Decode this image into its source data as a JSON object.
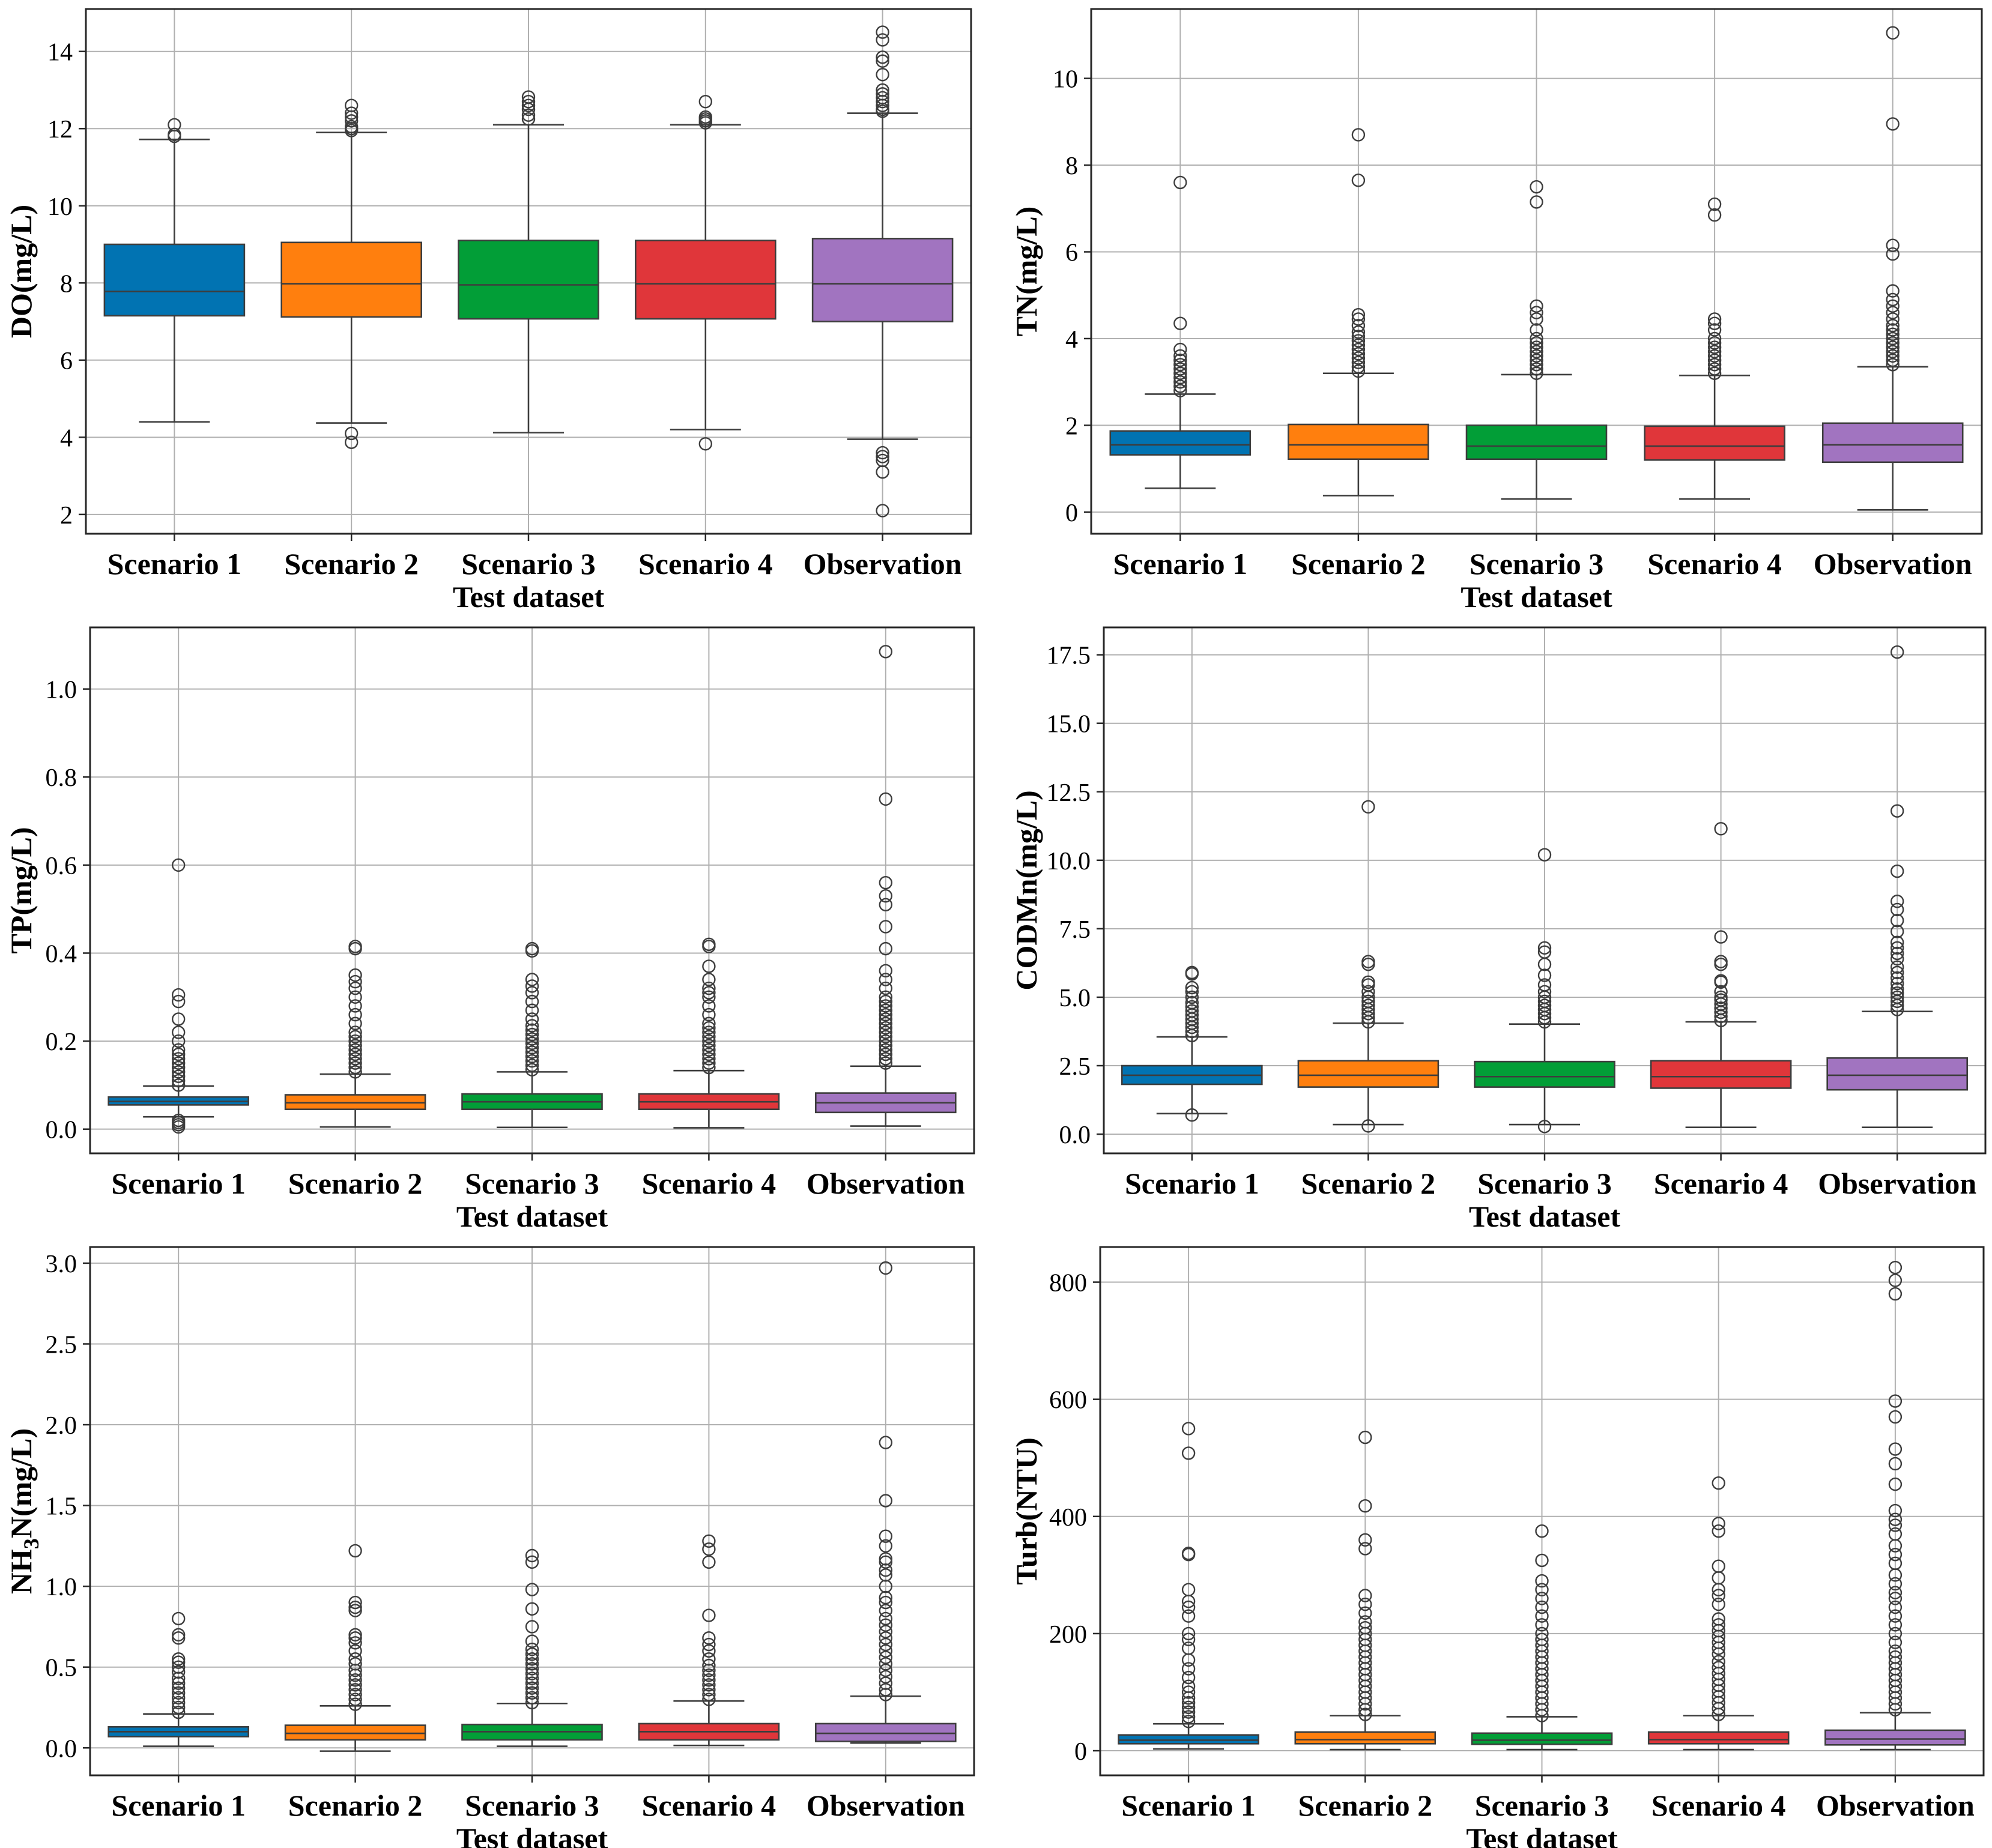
{
  "figure": {
    "xlabel": "Test dataset"
  },
  "colors": {
    "Scenario 1": "#0173b2",
    "Scenario 2": "#ff7f0e",
    "Scenario 3": "#029e37",
    "Scenario 4": "#e0363a",
    "Observation": "#a174c0"
  },
  "chart_data": [
    {
      "type": "box",
      "ylabel": "DO(mg/L)",
      "xlabel": "Test dataset",
      "categories": [
        "Scenario 1",
        "Scenario 2",
        "Scenario 3",
        "Scenario 4",
        "Observation"
      ],
      "ylim": [
        1.5,
        15.1
      ],
      "yticks": [
        2,
        4,
        6,
        8,
        10,
        12,
        14
      ],
      "ytick_labels": [
        "2",
        "4",
        "6",
        "8",
        "10",
        "12",
        "14"
      ],
      "stats": [
        {
          "whislo": 4.4,
          "q1": 7.15,
          "med": 7.78,
          "q3": 9.0,
          "whishi": 11.72,
          "fliers": [
            11.8,
            11.85,
            12.1
          ]
        },
        {
          "whislo": 4.37,
          "q1": 7.12,
          "med": 7.98,
          "q3": 9.05,
          "whishi": 11.9,
          "fliers": [
            3.87,
            4.1,
            11.95,
            12.0,
            12.05,
            12.2,
            12.3,
            12.4,
            12.6
          ]
        },
        {
          "whislo": 4.12,
          "q1": 7.07,
          "med": 7.95,
          "q3": 9.1,
          "whishi": 12.1,
          "fliers": [
            12.25,
            12.35,
            12.5,
            12.6,
            12.7,
            12.82
          ]
        },
        {
          "whislo": 4.2,
          "q1": 7.07,
          "med": 7.98,
          "q3": 9.1,
          "whishi": 12.1,
          "fliers": [
            3.83,
            12.15,
            12.2,
            12.25,
            12.3,
            12.7
          ]
        },
        {
          "whislo": 3.95,
          "q1": 7.0,
          "med": 7.98,
          "q3": 9.15,
          "whishi": 12.4,
          "fliers": [
            2.1,
            3.1,
            3.4,
            3.5,
            3.6,
            12.45,
            12.5,
            12.6,
            12.7,
            12.8,
            12.9,
            13.0,
            13.4,
            13.75,
            13.85,
            14.3,
            14.5
          ]
        }
      ]
    },
    {
      "type": "box",
      "ylabel": "TN(mg/L)",
      "xlabel": "Test dataset",
      "categories": [
        "Scenario 1",
        "Scenario 2",
        "Scenario 3",
        "Scenario 4",
        "Observation"
      ],
      "ylim": [
        -0.5,
        11.6
      ],
      "yticks": [
        0,
        2,
        4,
        6,
        8,
        10
      ],
      "ytick_labels": [
        "0",
        "2",
        "4",
        "6",
        "8",
        "10"
      ],
      "stats": [
        {
          "whislo": 0.55,
          "q1": 1.32,
          "med": 1.55,
          "q3": 1.87,
          "whishi": 2.72,
          "fliers": [
            2.8,
            2.9,
            3.0,
            3.1,
            3.2,
            3.3,
            3.4,
            3.5,
            3.6,
            3.75,
            4.35,
            7.6
          ]
        },
        {
          "whislo": 0.38,
          "q1": 1.22,
          "med": 1.55,
          "q3": 2.02,
          "whishi": 3.2,
          "fliers": [
            3.25,
            3.35,
            3.45,
            3.55,
            3.65,
            3.75,
            3.85,
            3.95,
            4.05,
            4.15,
            4.3,
            4.45,
            4.55,
            7.65,
            8.7
          ]
        },
        {
          "whislo": 0.3,
          "q1": 1.22,
          "med": 1.52,
          "q3": 2.0,
          "whishi": 3.17,
          "fliers": [
            3.2,
            3.3,
            3.4,
            3.5,
            3.6,
            3.7,
            3.8,
            3.9,
            4.0,
            4.2,
            4.45,
            4.6,
            4.75,
            7.15,
            7.5
          ]
        },
        {
          "whislo": 0.3,
          "q1": 1.2,
          "med": 1.52,
          "q3": 1.98,
          "whishi": 3.15,
          "fliers": [
            3.2,
            3.3,
            3.4,
            3.5,
            3.6,
            3.7,
            3.8,
            3.9,
            4.0,
            4.2,
            4.35,
            4.45,
            6.85,
            7.1
          ]
        },
        {
          "whislo": 0.05,
          "q1": 1.15,
          "med": 1.55,
          "q3": 2.05,
          "whishi": 3.35,
          "fliers": [
            3.4,
            3.5,
            3.6,
            3.7,
            3.8,
            3.9,
            4.0,
            4.1,
            4.2,
            4.3,
            4.45,
            4.6,
            4.75,
            4.9,
            5.1,
            5.95,
            6.15,
            8.95,
            11.05
          ]
        }
      ]
    },
    {
      "type": "box",
      "ylabel": "TP(mg/L)",
      "xlabel": "Test dataset",
      "categories": [
        "Scenario 1",
        "Scenario 2",
        "Scenario 3",
        "Scenario 4",
        "Observation"
      ],
      "ylim": [
        -0.055,
        1.14
      ],
      "yticks": [
        0.0,
        0.2,
        0.4,
        0.6,
        0.8,
        1.0
      ],
      "ytick_labels": [
        "0.0",
        "0.2",
        "0.4",
        "0.6",
        "0.8",
        "1.0"
      ],
      "stats": [
        {
          "whislo": 0.028,
          "q1": 0.055,
          "med": 0.063,
          "q3": 0.073,
          "whishi": 0.098,
          "fliers": [
            0.005,
            0.01,
            0.015,
            0.02,
            0.1,
            0.11,
            0.12,
            0.13,
            0.14,
            0.15,
            0.16,
            0.17,
            0.18,
            0.2,
            0.22,
            0.25,
            0.29,
            0.305,
            0.6
          ]
        },
        {
          "whislo": 0.005,
          "q1": 0.045,
          "med": 0.06,
          "q3": 0.078,
          "whishi": 0.125,
          "fliers": [
            0.13,
            0.14,
            0.15,
            0.16,
            0.17,
            0.18,
            0.19,
            0.2,
            0.21,
            0.22,
            0.24,
            0.26,
            0.28,
            0.3,
            0.32,
            0.335,
            0.35,
            0.41,
            0.415
          ]
        },
        {
          "whislo": 0.004,
          "q1": 0.045,
          "med": 0.062,
          "q3": 0.08,
          "whishi": 0.13,
          "fliers": [
            0.135,
            0.145,
            0.155,
            0.165,
            0.175,
            0.185,
            0.195,
            0.205,
            0.215,
            0.225,
            0.235,
            0.25,
            0.27,
            0.29,
            0.31,
            0.325,
            0.34,
            0.405,
            0.41
          ]
        },
        {
          "whislo": 0.003,
          "q1": 0.045,
          "med": 0.062,
          "q3": 0.08,
          "whishi": 0.133,
          "fliers": [
            0.14,
            0.15,
            0.16,
            0.17,
            0.18,
            0.19,
            0.2,
            0.21,
            0.22,
            0.23,
            0.24,
            0.26,
            0.28,
            0.3,
            0.31,
            0.32,
            0.34,
            0.37,
            0.415,
            0.42
          ]
        },
        {
          "whislo": 0.007,
          "q1": 0.038,
          "med": 0.06,
          "q3": 0.082,
          "whishi": 0.143,
          "fliers": [
            0.15,
            0.16,
            0.17,
            0.18,
            0.19,
            0.2,
            0.21,
            0.22,
            0.23,
            0.24,
            0.25,
            0.26,
            0.27,
            0.28,
            0.29,
            0.3,
            0.32,
            0.34,
            0.36,
            0.41,
            0.46,
            0.51,
            0.53,
            0.56,
            0.75,
            1.085
          ]
        }
      ]
    },
    {
      "type": "box",
      "ylabel": "CODMn(mg/L)",
      "xlabel": "Test dataset",
      "categories": [
        "Scenario 1",
        "Scenario 2",
        "Scenario 3",
        "Scenario 4",
        "Observation"
      ],
      "ylim": [
        -0.7,
        18.5
      ],
      "yticks": [
        0.0,
        2.5,
        5.0,
        7.5,
        10.0,
        12.5,
        15.0,
        17.5
      ],
      "ytick_labels": [
        "0.0",
        "2.5",
        "5.0",
        "7.5",
        "10.0",
        "12.5",
        "15.0",
        "17.5"
      ],
      "stats": [
        {
          "whislo": 0.75,
          "q1": 1.82,
          "med": 2.15,
          "q3": 2.5,
          "whishi": 3.55,
          "fliers": [
            0.7,
            3.6,
            3.75,
            3.9,
            4.05,
            4.2,
            4.35,
            4.5,
            4.65,
            4.8,
            5.0,
            5.2,
            5.35,
            5.85,
            5.9
          ]
        },
        {
          "whislo": 0.35,
          "q1": 1.72,
          "med": 2.15,
          "q3": 2.68,
          "whishi": 4.05,
          "fliers": [
            0.3,
            4.1,
            4.25,
            4.4,
            4.55,
            4.7,
            4.85,
            5.0,
            5.2,
            5.45,
            5.55,
            6.2,
            6.3,
            11.95
          ]
        },
        {
          "whislo": 0.35,
          "q1": 1.72,
          "med": 2.1,
          "q3": 2.65,
          "whishi": 4.02,
          "fliers": [
            0.28,
            4.1,
            4.25,
            4.4,
            4.55,
            4.7,
            4.85,
            5.0,
            5.2,
            5.45,
            5.8,
            6.2,
            6.65,
            6.8,
            10.2
          ]
        },
        {
          "whislo": 0.25,
          "q1": 1.68,
          "med": 2.1,
          "q3": 2.68,
          "whishi": 4.1,
          "fliers": [
            4.15,
            4.3,
            4.45,
            4.6,
            4.75,
            4.9,
            5.0,
            5.2,
            5.55,
            5.6,
            6.2,
            6.3,
            7.2,
            11.15
          ]
        },
        {
          "whislo": 0.25,
          "q1": 1.62,
          "med": 2.15,
          "q3": 2.78,
          "whishi": 4.48,
          "fliers": [
            4.55,
            4.7,
            4.85,
            5.0,
            5.15,
            5.3,
            5.5,
            5.7,
            5.9,
            6.1,
            6.4,
            6.6,
            6.8,
            7.0,
            7.4,
            7.8,
            8.2,
            8.5,
            9.6,
            11.8,
            17.6
          ]
        }
      ]
    },
    {
      "type": "box",
      "ylabel": "NH3N(mg/L)",
      "ylabel_parts": [
        "NH",
        "3",
        "N(mg/L)"
      ],
      "xlabel": "Test dataset",
      "categories": [
        "Scenario 1",
        "Scenario 2",
        "Scenario 3",
        "Scenario 4",
        "Observation"
      ],
      "ylim": [
        -0.17,
        3.1
      ],
      "yticks": [
        0.0,
        0.5,
        1.0,
        1.5,
        2.0,
        2.5,
        3.0
      ],
      "ytick_labels": [
        "0.0",
        "0.5",
        "1.0",
        "1.5",
        "2.0",
        "2.5",
        "3.0"
      ],
      "stats": [
        {
          "whislo": 0.01,
          "q1": 0.07,
          "med": 0.1,
          "q3": 0.13,
          "whishi": 0.21,
          "fliers": [
            0.22,
            0.25,
            0.28,
            0.31,
            0.34,
            0.37,
            0.4,
            0.43,
            0.47,
            0.5,
            0.53,
            0.55,
            0.68,
            0.7,
            0.8
          ]
        },
        {
          "whislo": -0.02,
          "q1": 0.05,
          "med": 0.09,
          "q3": 0.14,
          "whishi": 0.26,
          "fliers": [
            0.27,
            0.3,
            0.33,
            0.36,
            0.39,
            0.42,
            0.45,
            0.48,
            0.52,
            0.55,
            0.6,
            0.65,
            0.68,
            0.7,
            0.85,
            0.87,
            0.9,
            1.22
          ]
        },
        {
          "whislo": 0.01,
          "q1": 0.05,
          "med": 0.1,
          "q3": 0.145,
          "whishi": 0.275,
          "fliers": [
            0.28,
            0.31,
            0.34,
            0.37,
            0.4,
            0.43,
            0.46,
            0.49,
            0.52,
            0.55,
            0.58,
            0.61,
            0.66,
            0.75,
            0.86,
            0.98,
            1.15,
            1.19
          ]
        },
        {
          "whislo": 0.015,
          "q1": 0.05,
          "med": 0.1,
          "q3": 0.15,
          "whishi": 0.29,
          "fliers": [
            0.3,
            0.33,
            0.36,
            0.39,
            0.42,
            0.45,
            0.48,
            0.51,
            0.55,
            0.6,
            0.64,
            0.68,
            0.82,
            1.15,
            1.23,
            1.28
          ]
        },
        {
          "whislo": 0.03,
          "q1": 0.04,
          "med": 0.09,
          "q3": 0.15,
          "whishi": 0.32,
          "fliers": [
            0.33,
            0.36,
            0.4,
            0.44,
            0.48,
            0.52,
            0.56,
            0.6,
            0.64,
            0.68,
            0.72,
            0.76,
            0.8,
            0.85,
            0.9,
            0.93,
            1.0,
            1.07,
            1.1,
            1.15,
            1.17,
            1.25,
            1.31,
            1.53,
            1.89,
            2.97
          ]
        }
      ]
    },
    {
      "type": "box",
      "ylabel": "Turb(NTU)",
      "xlabel": "Test dataset",
      "categories": [
        "Scenario 1",
        "Scenario 2",
        "Scenario 3",
        "Scenario 4",
        "Observation"
      ],
      "ylim": [
        -42,
        860
      ],
      "yticks": [
        0,
        200,
        400,
        600,
        800
      ],
      "ytick_labels": [
        "0",
        "200",
        "400",
        "600",
        "800"
      ],
      "stats": [
        {
          "whislo": 3,
          "q1": 12,
          "med": 18,
          "q3": 27,
          "whishi": 46,
          "fliers": [
            50,
            58,
            66,
            74,
            82,
            90,
            100,
            110,
            125,
            140,
            155,
            175,
            190,
            200,
            230,
            245,
            255,
            275,
            335,
            337,
            508,
            550
          ]
        },
        {
          "whislo": 2,
          "q1": 12,
          "med": 19,
          "q3": 32,
          "whishi": 60,
          "fliers": [
            62,
            70,
            80,
            90,
            100,
            110,
            120,
            130,
            140,
            150,
            160,
            170,
            180,
            190,
            200,
            210,
            220,
            235,
            250,
            265,
            345,
            360,
            418,
            535
          ]
        },
        {
          "whislo": 2,
          "q1": 11,
          "med": 18,
          "q3": 30,
          "whishi": 58,
          "fliers": [
            60,
            70,
            80,
            90,
            100,
            110,
            120,
            130,
            140,
            150,
            160,
            170,
            180,
            190,
            200,
            215,
            230,
            245,
            260,
            275,
            290,
            325,
            375
          ]
        },
        {
          "whislo": 2,
          "q1": 12,
          "med": 19,
          "q3": 32,
          "whishi": 60,
          "fliers": [
            62,
            72,
            82,
            92,
            102,
            112,
            122,
            132,
            142,
            152,
            165,
            175,
            185,
            195,
            205,
            215,
            225,
            250,
            265,
            275,
            295,
            315,
            375,
            388,
            457
          ]
        },
        {
          "whislo": 2,
          "q1": 10,
          "med": 20,
          "q3": 35,
          "whishi": 65,
          "fliers": [
            70,
            80,
            90,
            100,
            110,
            120,
            130,
            140,
            150,
            160,
            170,
            185,
            200,
            215,
            230,
            245,
            260,
            270,
            285,
            300,
            320,
            335,
            350,
            370,
            385,
            395,
            410,
            455,
            490,
            515,
            570,
            597,
            780,
            803,
            825
          ]
        }
      ]
    }
  ]
}
